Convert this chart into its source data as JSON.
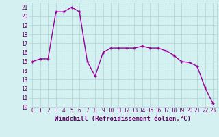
{
  "x": [
    0,
    1,
    2,
    3,
    4,
    5,
    6,
    7,
    8,
    9,
    10,
    11,
    12,
    13,
    14,
    15,
    16,
    17,
    18,
    19,
    20,
    21,
    22,
    23
  ],
  "y": [
    15.0,
    15.3,
    15.3,
    20.5,
    20.5,
    21.0,
    20.5,
    15.0,
    13.4,
    16.0,
    16.5,
    16.5,
    16.5,
    16.5,
    16.7,
    16.5,
    16.5,
    16.2,
    15.7,
    15.0,
    14.9,
    14.5,
    12.1,
    10.4
  ],
  "line_color": "#990099",
  "marker": "+",
  "marker_size": 3,
  "marker_lw": 1.0,
  "bg_color": "#d4f0f0",
  "grid_color": "#aad4d4",
  "xlabel": "Windchill (Refroidissement éolien,°C)",
  "label_color": "#660066",
  "xlim_min": -0.5,
  "xlim_max": 23.5,
  "ylim_min": 10,
  "ylim_max": 21.5,
  "yticks": [
    10,
    11,
    12,
    13,
    14,
    15,
    16,
    17,
    18,
    19,
    20,
    21
  ],
  "xticks": [
    0,
    1,
    2,
    3,
    4,
    5,
    6,
    7,
    8,
    9,
    10,
    11,
    12,
    13,
    14,
    15,
    16,
    17,
    18,
    19,
    20,
    21,
    22,
    23
  ],
  "tick_fontsize": 5.5,
  "xlabel_fontsize": 6.5,
  "line_width": 1.0
}
